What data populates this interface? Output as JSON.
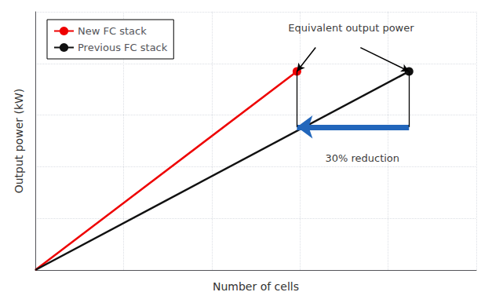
{
  "chart_data": {
    "type": "line",
    "xlabel": "Number of cells",
    "ylabel": "Output power (kW)",
    "series": [
      {
        "name": "New FC stack",
        "color": "#ee0000",
        "x": [
          0,
          0.7
        ],
        "values": [
          0,
          1.0
        ],
        "marker": "circle"
      },
      {
        "name": "Previous FC stack",
        "color": "#111111",
        "x": [
          0,
          1.0
        ],
        "values": [
          0,
          1.0
        ],
        "marker": "circle"
      }
    ],
    "xlim": [
      0,
      1.18
    ],
    "ylim": [
      0,
      1.3
    ],
    "xticks": [
      0,
      0.236,
      0.472,
      0.708,
      0.944,
      1.18
    ],
    "yticks": [
      0,
      0.26,
      0.52,
      0.78,
      1.04,
      1.3
    ],
    "tick_labels": false,
    "grid": true,
    "legend": "upper left",
    "annotations": [
      {
        "text": "Equivalent output power",
        "x": 0.845,
        "y": 1.185,
        "arrows": [
          {
            "from": [
              0.75,
              1.12
            ],
            "to": [
              0.7,
              1.0
            ]
          },
          {
            "from": [
              0.87,
              1.12
            ],
            "to": [
              1.0,
              1.0
            ]
          }
        ]
      },
      {
        "text": "30% reduction",
        "x": 0.875,
        "y": 0.595,
        "arrows": [
          {
            "from": [
              1.0,
              0.72
            ],
            "to": [
              0.7,
              0.72
            ],
            "color": "#2266bb"
          }
        ],
        "lines": [
          {
            "from": [
              0.7,
              0.72
            ],
            "to": [
              0.7,
              1.0
            ]
          },
          {
            "from": [
              1.0,
              0.72
            ],
            "to": [
              1.0,
              1.0
            ]
          }
        ]
      }
    ]
  }
}
